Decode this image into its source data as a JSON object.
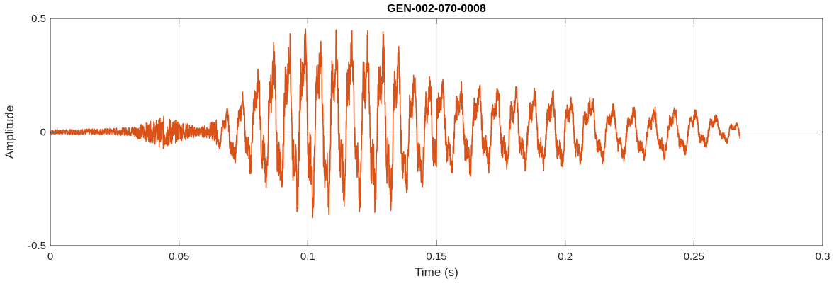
{
  "chart_data": {
    "type": "line",
    "title": "GEN-002-070-0008",
    "xlabel": "Time (s)",
    "ylabel": "Amplitude",
    "xlim": [
      0,
      0.3
    ],
    "ylim": [
      -0.5,
      0.5
    ],
    "x_ticks": [
      0,
      0.05,
      0.1,
      0.15,
      0.2,
      0.25,
      0.3
    ],
    "x_tick_labels": [
      "0",
      "0.05",
      "0.1",
      "0.15",
      "0.2",
      "0.25",
      "0.3"
    ],
    "y_ticks": [
      -0.5,
      0,
      0.5
    ],
    "y_tick_labels": [
      "-0.5",
      "0",
      "0.5"
    ],
    "grid": true,
    "series": [
      {
        "color": "#D95319",
        "description_of_envelope": null,
        "x_start": 0,
        "x_end": 0.268,
        "envelope": [
          {
            "t": 0.0,
            "max": 0.01,
            "min": -0.01
          },
          {
            "t": 0.02,
            "max": 0.015,
            "min": -0.012
          },
          {
            "t": 0.03,
            "max": 0.02,
            "min": -0.015
          },
          {
            "t": 0.04,
            "max": 0.05,
            "min": -0.05
          },
          {
            "t": 0.044,
            "max": 0.07,
            "min": -0.08
          },
          {
            "t": 0.05,
            "max": 0.05,
            "min": -0.04
          },
          {
            "t": 0.058,
            "max": 0.02,
            "min": -0.02
          },
          {
            "t": 0.062,
            "max": 0.04,
            "min": -0.03
          },
          {
            "t": 0.065,
            "max": 0.06,
            "min": -0.06
          },
          {
            "t": 0.07,
            "max": 0.12,
            "min": -0.15
          },
          {
            "t": 0.075,
            "max": 0.18,
            "min": -0.15
          },
          {
            "t": 0.08,
            "max": 0.28,
            "min": -0.22
          },
          {
            "t": 0.085,
            "max": 0.38,
            "min": -0.3
          },
          {
            "t": 0.09,
            "max": 0.42,
            "min": -0.33
          },
          {
            "t": 0.095,
            "max": 0.45,
            "min": -0.35
          },
          {
            "t": 0.1,
            "max": 0.49,
            "min": -0.35
          },
          {
            "t": 0.105,
            "max": 0.45,
            "min": -0.42
          },
          {
            "t": 0.11,
            "max": 0.45,
            "min": -0.35
          },
          {
            "t": 0.115,
            "max": 0.45,
            "min": -0.33
          },
          {
            "t": 0.12,
            "max": 0.44,
            "min": -0.35
          },
          {
            "t": 0.125,
            "max": 0.45,
            "min": -0.36
          },
          {
            "t": 0.13,
            "max": 0.44,
            "min": -0.36
          },
          {
            "t": 0.135,
            "max": 0.38,
            "min": -0.33
          },
          {
            "t": 0.14,
            "max": 0.3,
            "min": -0.28
          },
          {
            "t": 0.145,
            "max": 0.25,
            "min": -0.24
          },
          {
            "t": 0.15,
            "max": 0.25,
            "min": -0.22
          },
          {
            "t": 0.16,
            "max": 0.22,
            "min": -0.2
          },
          {
            "t": 0.17,
            "max": 0.21,
            "min": -0.18
          },
          {
            "t": 0.18,
            "max": 0.2,
            "min": -0.18
          },
          {
            "t": 0.19,
            "max": 0.19,
            "min": -0.17
          },
          {
            "t": 0.2,
            "max": 0.18,
            "min": -0.17
          },
          {
            "t": 0.21,
            "max": 0.15,
            "min": -0.15
          },
          {
            "t": 0.22,
            "max": 0.12,
            "min": -0.13
          },
          {
            "t": 0.23,
            "max": 0.11,
            "min": -0.13
          },
          {
            "t": 0.24,
            "max": 0.11,
            "min": -0.12
          },
          {
            "t": 0.25,
            "max": 0.1,
            "min": -0.09
          },
          {
            "t": 0.255,
            "max": 0.09,
            "min": -0.07
          },
          {
            "t": 0.26,
            "max": 0.07,
            "min": -0.05
          },
          {
            "t": 0.265,
            "max": 0.05,
            "min": -0.05
          },
          {
            "t": 0.268,
            "max": 0.03,
            "min": -0.06
          }
        ]
      }
    ]
  }
}
